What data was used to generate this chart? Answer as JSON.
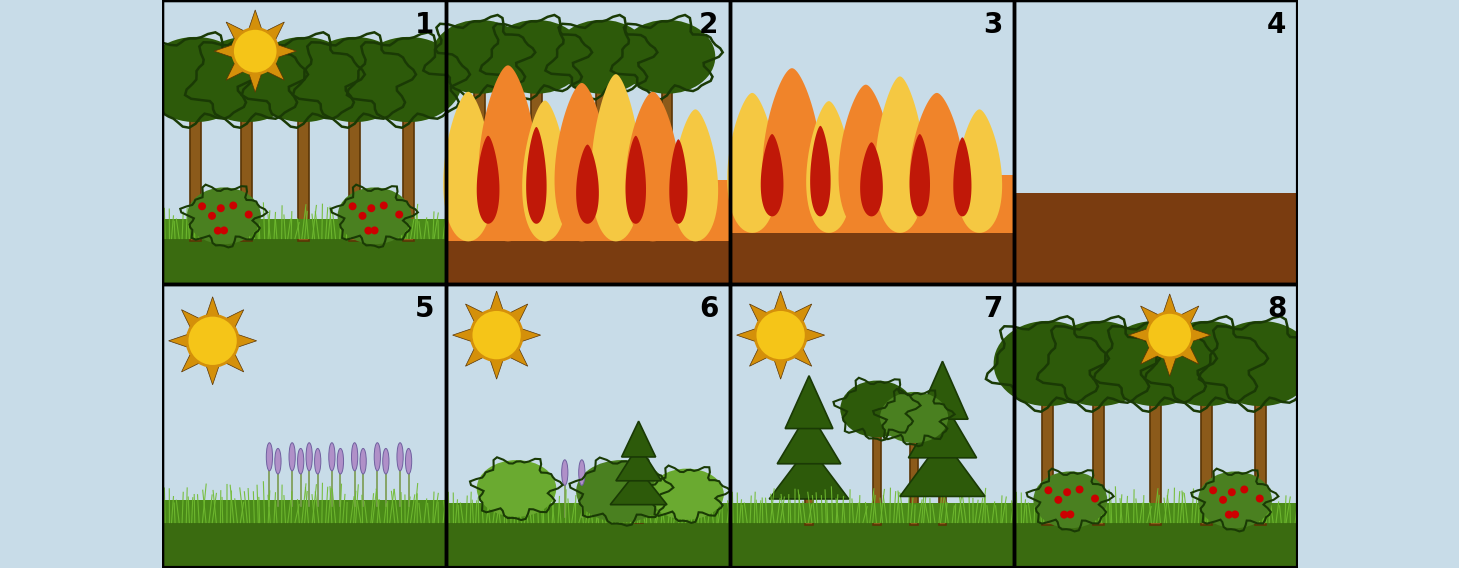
{
  "title": "",
  "bg": "#c8dce8",
  "sky": "#c8dce8",
  "grass_dark": "#3a6b10",
  "grass_mid": "#4a8a18",
  "grass_light": "#70bb30",
  "tree_dark": "#2d5a0a",
  "tree_mid": "#3a7210",
  "trunk": "#8B5A1A",
  "trunk_edge": "#5a3505",
  "fire_yellow": "#F5C842",
  "fire_orange": "#F0842A",
  "fire_red": "#C01808",
  "burn": "#7a3c10",
  "sun_y": "#F5C518",
  "sun_o": "#D4900A",
  "shrub": "#4a8020",
  "shrub2": "#6aaa30",
  "berry": "#CC0000",
  "lavender": "#b090c8",
  "pine": "#2d5a0a",
  "pine_edge": "#1a3a05",
  "panel_lw": 2.5,
  "num_size": 20
}
